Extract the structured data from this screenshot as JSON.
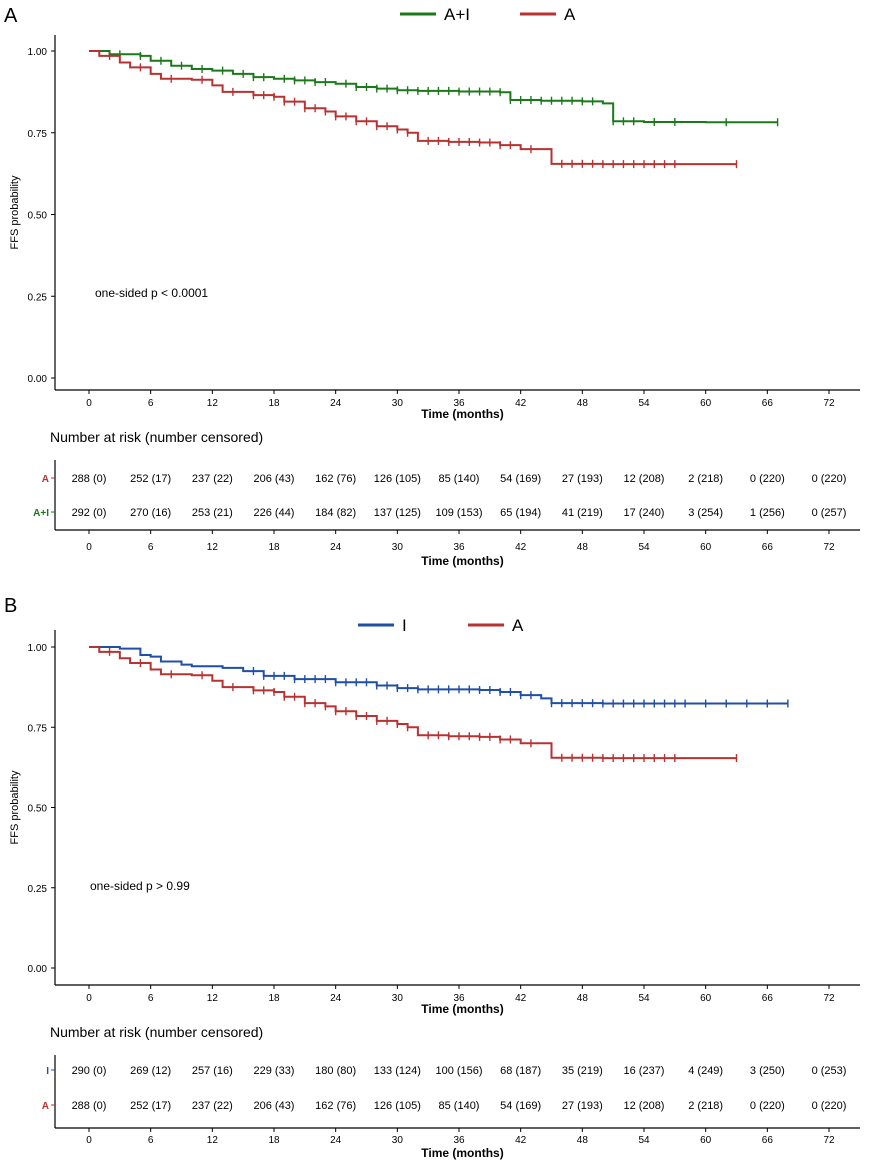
{
  "chart_data": [
    {
      "panel_label": "A",
      "type": "line",
      "title": "",
      "ylabel": "FFS probability",
      "xlabel": "Time (months)",
      "ylim": [
        0,
        1.0
      ],
      "xlim": [
        0,
        72
      ],
      "x_ticks": [
        "0",
        "6",
        "12",
        "18",
        "24",
        "30",
        "36",
        "42",
        "48",
        "54",
        "60",
        "66",
        "72"
      ],
      "y_ticks": [
        "0.00",
        "0.25",
        "0.50",
        "0.75",
        "1.00"
      ],
      "legend_position": "top-center",
      "annotation": "one-sided p < 0.0001",
      "series": [
        {
          "name": "A+I",
          "color": "#1a7a1a",
          "points": [
            [
              0,
              1.0
            ],
            [
              2,
              0.99
            ],
            [
              5,
              0.985
            ],
            [
              6,
              0.97
            ],
            [
              8,
              0.955
            ],
            [
              10,
              0.945
            ],
            [
              12,
              0.94
            ],
            [
              14,
              0.93
            ],
            [
              16,
              0.92
            ],
            [
              18,
              0.915
            ],
            [
              20,
              0.91
            ],
            [
              22,
              0.905
            ],
            [
              24,
              0.9
            ],
            [
              26,
              0.89
            ],
            [
              28,
              0.885
            ],
            [
              30,
              0.88
            ],
            [
              32,
              0.878
            ],
            [
              36,
              0.876
            ],
            [
              40,
              0.874
            ],
            [
              41,
              0.85
            ],
            [
              44,
              0.848
            ],
            [
              48,
              0.846
            ],
            [
              50,
              0.84
            ],
            [
              51,
              0.785
            ],
            [
              54,
              0.783
            ],
            [
              60,
              0.782
            ],
            [
              67,
              0.782
            ]
          ],
          "censor_x": [
            3,
            5,
            7,
            9,
            11,
            13,
            15,
            16,
            17,
            19,
            20,
            21,
            22,
            23,
            25,
            26,
            27,
            28,
            29,
            30,
            31,
            32,
            33,
            34,
            35,
            36,
            37,
            38,
            39,
            40,
            41,
            42,
            43,
            44,
            45,
            46,
            47,
            48,
            49,
            51,
            52,
            53,
            55,
            57,
            62,
            67
          ]
        },
        {
          "name": "A",
          "color": "#b83232",
          "points": [
            [
              0,
              1.0
            ],
            [
              1,
              0.985
            ],
            [
              3,
              0.965
            ],
            [
              4,
              0.95
            ],
            [
              6,
              0.93
            ],
            [
              7,
              0.915
            ],
            [
              10,
              0.912
            ],
            [
              12,
              0.895
            ],
            [
              13,
              0.875
            ],
            [
              16,
              0.865
            ],
            [
              18,
              0.86
            ],
            [
              19,
              0.845
            ],
            [
              21,
              0.825
            ],
            [
              23,
              0.815
            ],
            [
              24,
              0.8
            ],
            [
              26,
              0.785
            ],
            [
              28,
              0.77
            ],
            [
              30,
              0.76
            ],
            [
              31,
              0.75
            ],
            [
              32,
              0.725
            ],
            [
              35,
              0.722
            ],
            [
              38,
              0.72
            ],
            [
              40,
              0.712
            ],
            [
              42,
              0.7
            ],
            [
              44,
              0.7
            ],
            [
              45,
              0.655
            ],
            [
              50,
              0.654
            ],
            [
              56,
              0.654
            ],
            [
              63,
              0.654
            ]
          ],
          "censor_x": [
            2,
            5,
            8,
            11,
            14,
            16,
            17,
            18,
            19,
            20,
            21,
            22,
            23,
            24,
            25,
            26,
            27,
            28,
            29,
            30,
            31,
            33,
            34,
            35,
            36,
            37,
            38,
            39,
            40,
            41,
            43,
            46,
            47,
            48,
            49,
            50,
            51,
            52,
            53,
            54,
            55,
            56,
            57,
            63
          ]
        }
      ],
      "risk_table": {
        "heading": "Number at risk (number censored)",
        "xlabel": "Time (months)",
        "rows": [
          {
            "label": "A",
            "color": "#b83232",
            "values": [
              "288 (0)",
              "252 (17)",
              "237 (22)",
              "206 (43)",
              "162 (76)",
              "126 (105)",
              "85 (140)",
              "54 (169)",
              "27 (193)",
              "12 (208)",
              "2 (218)",
              "0 (220)",
              "0 (220)"
            ]
          },
          {
            "label": "A+I",
            "color": "#1a7a1a",
            "values": [
              "292 (0)",
              "270 (16)",
              "253 (21)",
              "226 (44)",
              "184 (82)",
              "137 (125)",
              "109 (153)",
              "65 (194)",
              "41 (219)",
              "17 (240)",
              "3 (254)",
              "1 (256)",
              "0 (257)"
            ]
          }
        ]
      }
    },
    {
      "panel_label": "B",
      "type": "line",
      "title": "",
      "ylabel": "FFS probability",
      "xlabel": "Time (months)",
      "ylim": [
        0,
        1.0
      ],
      "xlim": [
        0,
        72
      ],
      "x_ticks": [
        "0",
        "6",
        "12",
        "18",
        "24",
        "30",
        "36",
        "42",
        "48",
        "54",
        "60",
        "66",
        "72"
      ],
      "y_ticks": [
        "0.00",
        "0.25",
        "0.50",
        "0.75",
        "1.00"
      ],
      "legend_position": "top-center",
      "annotation": "one-sided p > 0.99",
      "series": [
        {
          "name": "I",
          "color": "#1f4fa6",
          "points": [
            [
              0,
              1.0
            ],
            [
              3,
              0.995
            ],
            [
              5,
              0.975
            ],
            [
              6,
              0.97
            ],
            [
              7,
              0.955
            ],
            [
              9,
              0.945
            ],
            [
              10,
              0.94
            ],
            [
              13,
              0.935
            ],
            [
              15,
              0.925
            ],
            [
              17,
              0.91
            ],
            [
              20,
              0.9
            ],
            [
              24,
              0.89
            ],
            [
              28,
              0.88
            ],
            [
              30,
              0.872
            ],
            [
              32,
              0.868
            ],
            [
              38,
              0.866
            ],
            [
              40,
              0.86
            ],
            [
              42,
              0.85
            ],
            [
              44,
              0.84
            ],
            [
              45,
              0.825
            ],
            [
              50,
              0.824
            ],
            [
              60,
              0.824
            ],
            [
              68,
              0.824
            ]
          ],
          "censor_x": [
            16,
            17,
            18,
            19,
            20,
            21,
            22,
            23,
            24,
            25,
            26,
            27,
            28,
            29,
            30,
            31,
            32,
            33,
            34,
            35,
            36,
            37,
            38,
            39,
            40,
            41,
            42,
            43,
            45,
            46,
            47,
            48,
            49,
            50,
            51,
            52,
            53,
            54,
            55,
            56,
            57,
            58,
            60,
            62,
            64,
            66,
            68
          ]
        },
        {
          "name": "A",
          "color": "#b83232",
          "points": [
            [
              0,
              1.0
            ],
            [
              1,
              0.985
            ],
            [
              3,
              0.965
            ],
            [
              4,
              0.95
            ],
            [
              6,
              0.93
            ],
            [
              7,
              0.915
            ],
            [
              10,
              0.912
            ],
            [
              12,
              0.895
            ],
            [
              13,
              0.875
            ],
            [
              16,
              0.865
            ],
            [
              18,
              0.86
            ],
            [
              19,
              0.845
            ],
            [
              21,
              0.825
            ],
            [
              23,
              0.815
            ],
            [
              24,
              0.8
            ],
            [
              26,
              0.785
            ],
            [
              28,
              0.77
            ],
            [
              30,
              0.76
            ],
            [
              31,
              0.75
            ],
            [
              32,
              0.725
            ],
            [
              35,
              0.722
            ],
            [
              38,
              0.72
            ],
            [
              40,
              0.712
            ],
            [
              42,
              0.7
            ],
            [
              44,
              0.7
            ],
            [
              45,
              0.655
            ],
            [
              50,
              0.654
            ],
            [
              56,
              0.654
            ],
            [
              63,
              0.654
            ]
          ],
          "censor_x": [
            2,
            5,
            8,
            11,
            14,
            16,
            17,
            18,
            19,
            20,
            21,
            22,
            23,
            24,
            25,
            26,
            27,
            28,
            29,
            30,
            31,
            33,
            34,
            35,
            36,
            37,
            38,
            39,
            40,
            41,
            43,
            46,
            47,
            48,
            49,
            50,
            51,
            52,
            53,
            54,
            55,
            56,
            57,
            63
          ]
        }
      ],
      "risk_table": {
        "heading": "Number at risk (number censored)",
        "xlabel": "Time (months)",
        "rows": [
          {
            "label": "I",
            "color": "#1f4fa6",
            "values": [
              "290 (0)",
              "269 (12)",
              "257 (16)",
              "229 (33)",
              "180 (80)",
              "133 (124)",
              "100 (156)",
              "68 (187)",
              "35 (219)",
              "16 (237)",
              "4 (249)",
              "3 (250)",
              "0 (253)"
            ]
          },
          {
            "label": "A",
            "color": "#b83232",
            "values": [
              "288 (0)",
              "252 (17)",
              "237 (22)",
              "206 (43)",
              "162 (76)",
              "126 (105)",
              "85 (140)",
              "54 (169)",
              "27 (193)",
              "12 (208)",
              "2 (218)",
              "0 (220)",
              "0 (220)"
            ]
          }
        ]
      }
    }
  ]
}
